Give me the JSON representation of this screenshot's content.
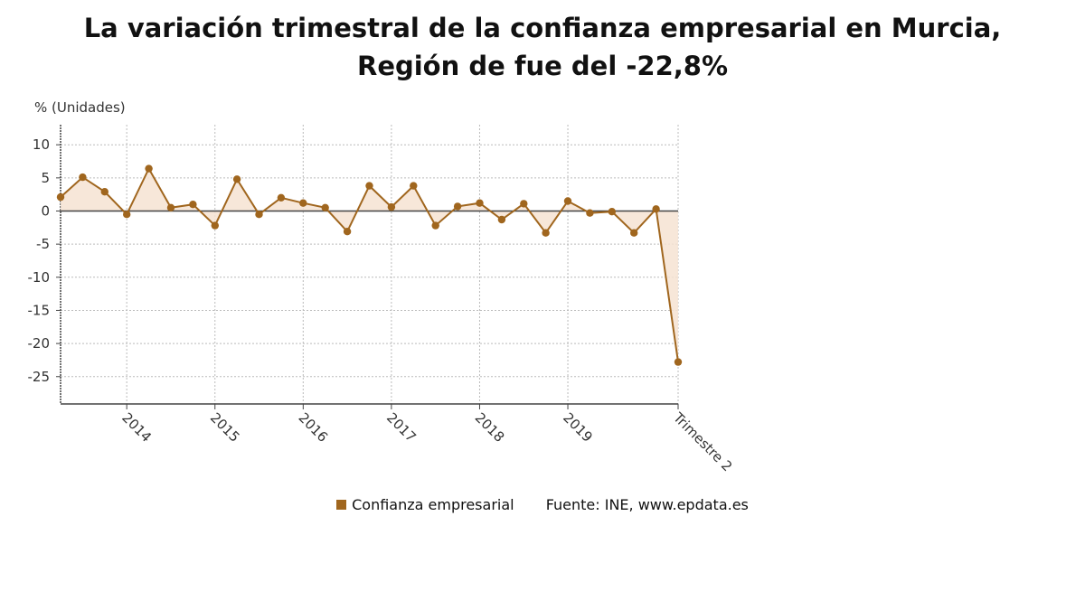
{
  "title": {
    "line1": "La variación trimestral de la confianza empresarial en Murcia,",
    "line2": "Región de fue del -22,8%"
  },
  "legend": {
    "series_label": "Confianza empresarial",
    "source": "Fuente: INE, www.epdata.es"
  },
  "colors": {
    "series": "#a0661e",
    "fill": "#f6e3d2",
    "zero_line": "#444444",
    "grid": "#bbbbbb"
  },
  "chart_data": {
    "type": "line",
    "ylabel": "% (Unidades)",
    "ylim": [
      -29,
      13
    ],
    "yticks": [
      10,
      5,
      0,
      -5,
      -10,
      -15,
      -20,
      -25
    ],
    "grid": true,
    "legend_position": "bottom",
    "x_tick_labels": [
      {
        "label": "2014",
        "index": 3
      },
      {
        "label": "2015",
        "index": 7
      },
      {
        "label": "2016",
        "index": 11
      },
      {
        "label": "2017",
        "index": 15
      },
      {
        "label": "2018",
        "index": 19
      },
      {
        "label": "2019",
        "index": 23
      },
      {
        "label": "Trimestre 2",
        "index": 28
      }
    ],
    "series": [
      {
        "name": "Confianza empresarial",
        "values": [
          2.1,
          5.1,
          2.9,
          -0.5,
          6.4,
          0.5,
          1.0,
          -2.2,
          4.8,
          -0.5,
          2.0,
          1.2,
          0.5,
          -3.1,
          3.8,
          0.6,
          3.8,
          -2.2,
          0.7,
          1.2,
          -1.3,
          1.1,
          -3.3,
          1.5,
          -0.3,
          -0.1,
          -3.3,
          0.3,
          -22.8
        ]
      }
    ]
  }
}
